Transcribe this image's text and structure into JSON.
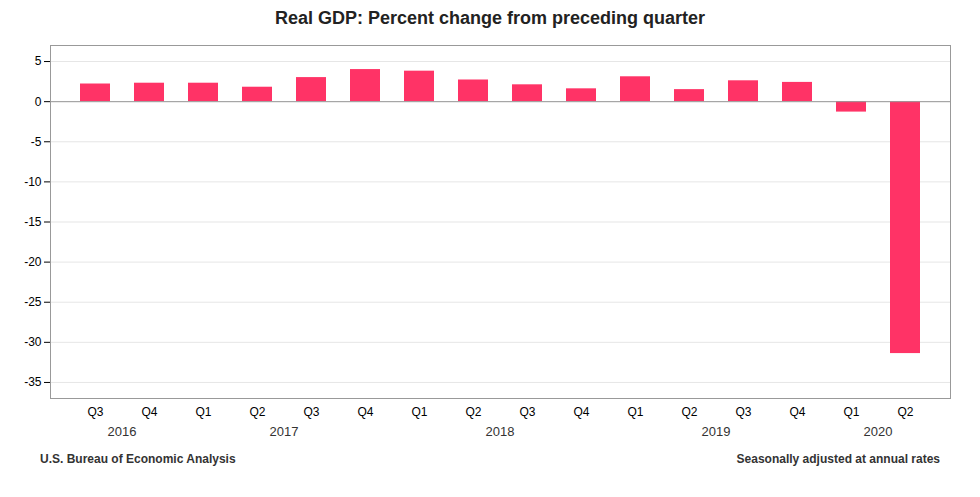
{
  "chart_data": {
    "type": "bar",
    "title": "Real GDP: Percent change from preceding quarter",
    "categories": [
      "Q3",
      "Q4",
      "Q1",
      "Q2",
      "Q3",
      "Q4",
      "Q1",
      "Q2",
      "Q3",
      "Q4",
      "Q1",
      "Q2",
      "Q3",
      "Q4",
      "Q1",
      "Q2"
    ],
    "group_labels": [
      "2016",
      "2016",
      "2017",
      "2017",
      "2017",
      "2017",
      "2018",
      "2018",
      "2018",
      "2018",
      "2019",
      "2019",
      "2019",
      "2019",
      "2020",
      "2020"
    ],
    "values": [
      2.2,
      2.3,
      2.3,
      1.8,
      3.0,
      4.0,
      3.8,
      2.7,
      2.1,
      1.6,
      3.1,
      1.5,
      2.6,
      2.4,
      -1.3,
      -31.4
    ],
    "color": "#FF3366",
    "ylim": [
      -37,
      7
    ],
    "yticks": [
      5,
      0,
      -5,
      -10,
      -15,
      -20,
      -25,
      -30,
      -35
    ],
    "grid": true,
    "source": "U.S. Bureau of Economic Analysis",
    "note": "Seasonally adjusted at annual rates"
  }
}
